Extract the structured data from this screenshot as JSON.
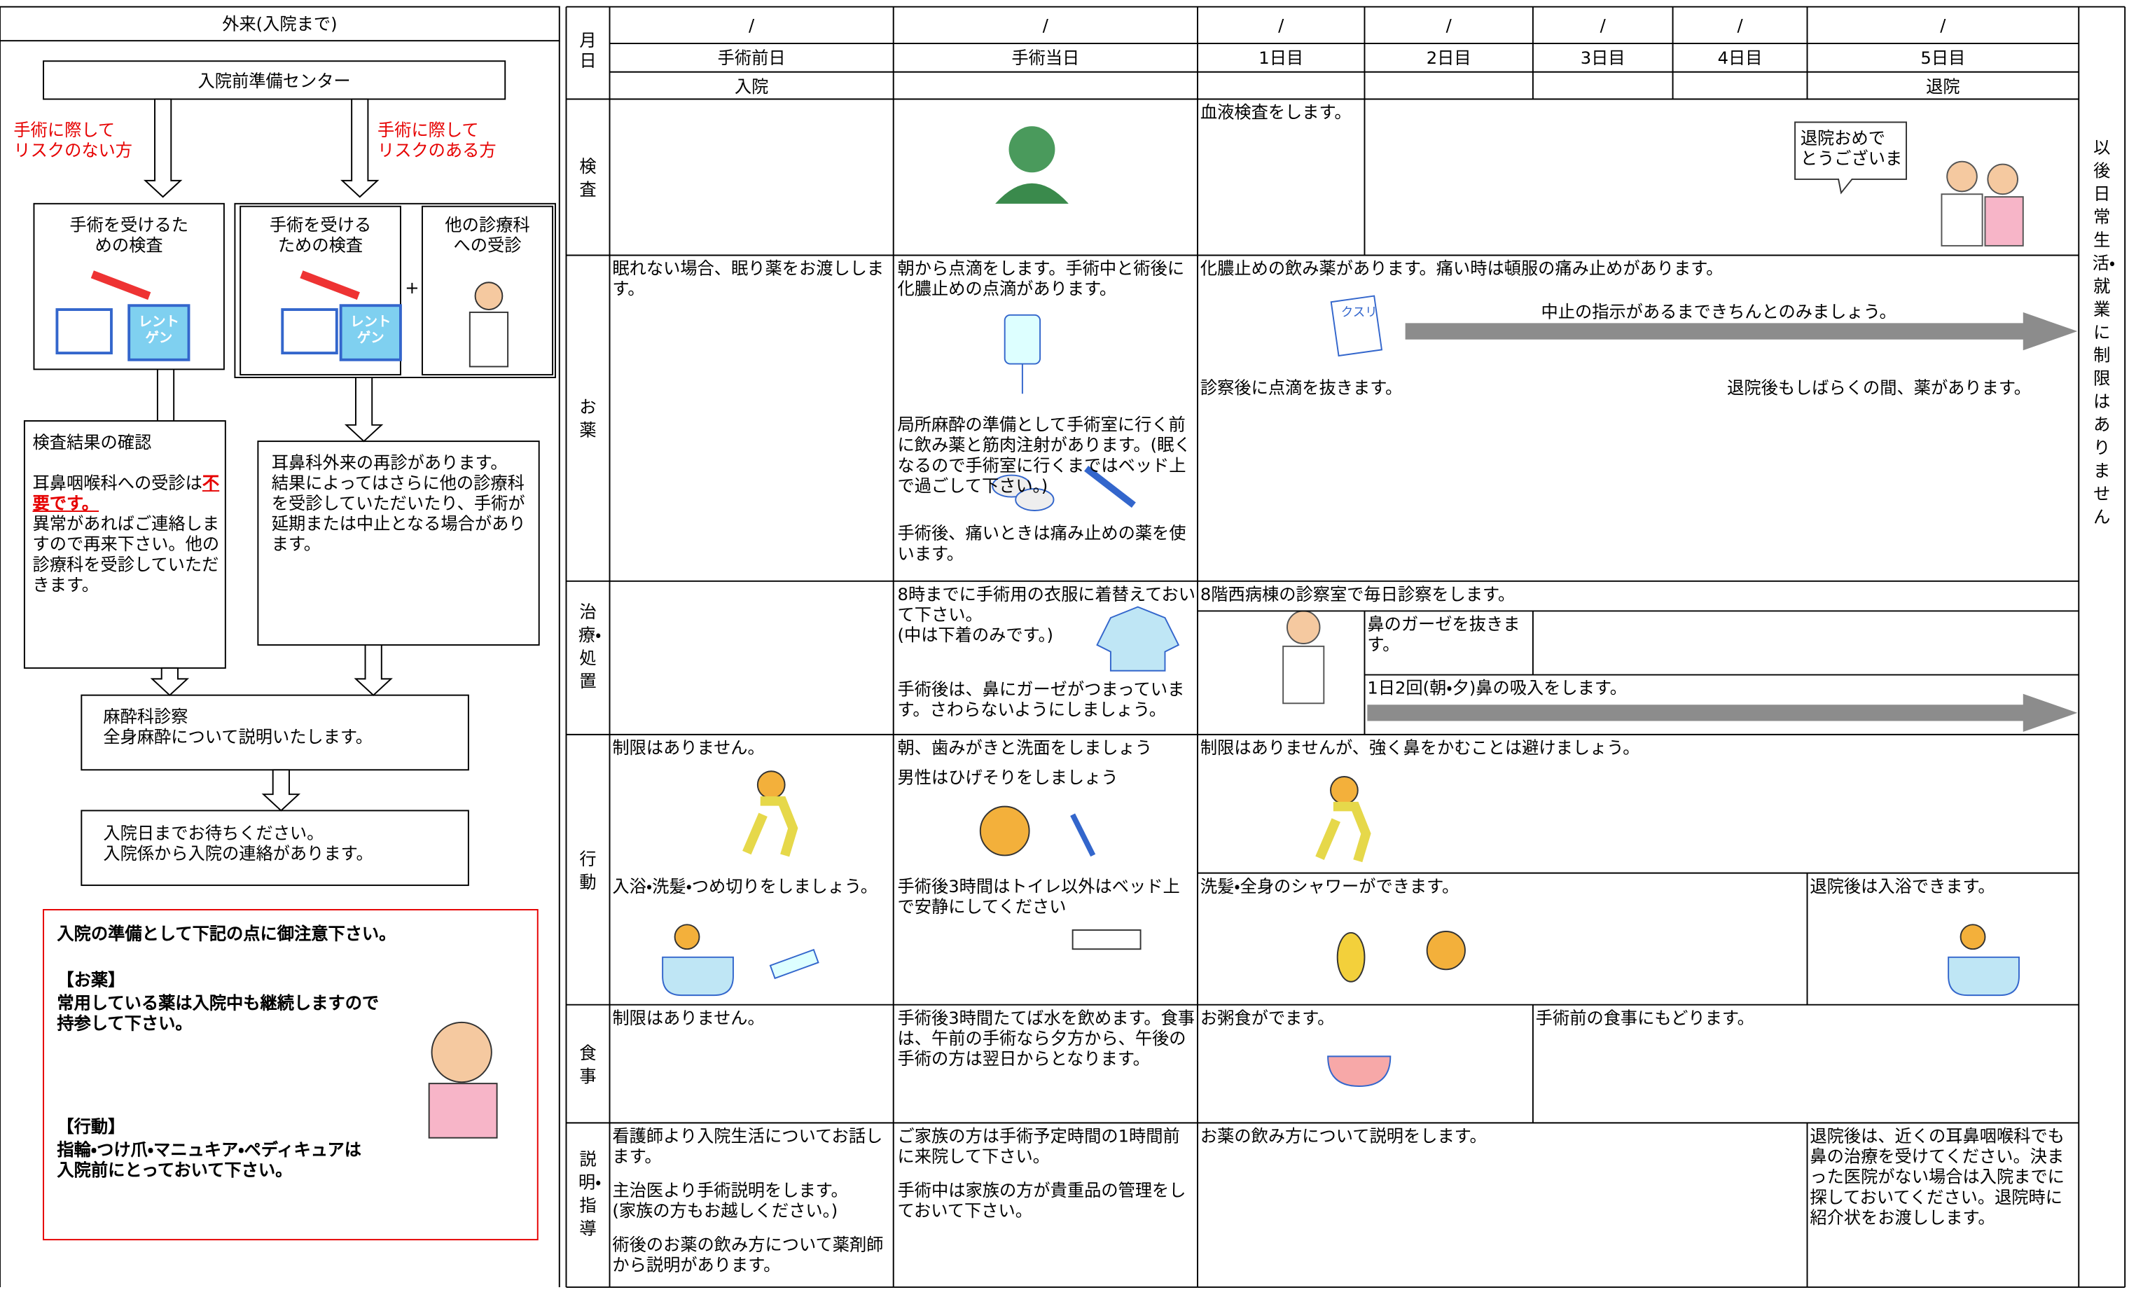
{
  "left_panel": {
    "title": "外来(入院まで)",
    "center": "入院前準備センター",
    "no_risk": "手術に際して\nリスクのない方",
    "risk": "手術に際して\nリスクのある方",
    "exam_no_risk": "手術を受けるた\nめの検査",
    "exam_risk": "手術を受ける\nための検査",
    "other_dept": "他の診療科\nへの受診",
    "plus": "+",
    "xray_label": "レント\nゲン",
    "result": {
      "heading": "検査結果の確認",
      "line1": "耳鼻咽喉科への受診は",
      "emphasis": "不要です。",
      "line2": "異常があればご連絡しますので再来下さい。他の診療科を受診していただきます。"
    },
    "revisit": "耳鼻科外来の再診があります。\n結果によってはさらに他の診療科を受診していただいたり、手術が延期または中止となる場合があります。",
    "anesthesia": "麻酔科診察\n全身麻酔について説明いたします。",
    "wait": "入院日までお待ちください。\n入院係から入院の連絡があります。",
    "notice": {
      "heading": "入院の準備として下記の点に御注意下さい。",
      "medicine_title": "【お薬】",
      "medicine": "常用している薬は入院中も継続しますので\n持参して下さい。",
      "activity_title": "【行動】",
      "activity": "指輪・つけ爪・マニュキア・ペディキュアは\n入院前にとっておいて下さい。"
    }
  },
  "schedule": {
    "date_header": "月\n日",
    "dates": [
      "/",
      "/",
      "/",
      "/",
      "/",
      "/",
      "/"
    ],
    "days": [
      "手術前日",
      "手術当日",
      "1日目",
      "2日目",
      "3日目",
      "4日目",
      "5日目"
    ],
    "admission": "入院",
    "discharge": "退院",
    "after_note": "以後日常生活・就業に制限はありません",
    "medicine_icon": "クスリ",
    "rows": [
      {
        "label": "検査",
        "cells": [
          "血液検査をします。",
          "退院おめで\nとうございま"
        ]
      },
      {
        "label": "お薬",
        "cells": [
          "眠れない場合、眠り薬をお渡しします。",
          "朝から点滴をします。手術中と術後に化膿止めの点滴があります。",
          "局所麻酔の準備として手術室に行く前に飲み薬と筋肉注射があります。(眠くなるので手術室に行くまではベッド上で過ごして下さい。)",
          "手術後、痛いときは痛み止めの薬を使います。",
          "化膿止めの飲み薬があります。痛い時は頓服の痛み止めがあります。",
          "中止の指示があるまできちんとのみましょう。",
          "診察後に点滴を抜きます。",
          "退院後もしばらくの間、薬があります。"
        ]
      },
      {
        "label": "治療・処置",
        "cells": [
          "8時までに手術用の衣服に着替えておいて下さい。\n(中は下着のみです。)",
          "手術後は、鼻にガーゼがつまっています。さわらないようにしましょう。",
          "8階西病棟の診察室で毎日診察をします。",
          "鼻のガーゼを抜きます。",
          "1日2回(朝・夕)鼻の吸入をします。"
        ]
      },
      {
        "label": "行動",
        "cells": [
          "制限はありません。",
          "入浴・洗髪・つめ切りをしましょう。",
          "朝、歯みがきと洗面をしましょう",
          "男性はひげそりをしましょう",
          "手術後3時間はトイレ以外はベッド上で安静にしてください",
          "制限はありませんが、強く鼻をかむことは避けましょう。",
          "洗髪・全身のシャワーができます。",
          "退院後は入浴できます。"
        ]
      },
      {
        "label": "食事",
        "cells": [
          "制限はありません。",
          "手術後3時間たてば水を飲めます。食事は、午前の手術なら夕方から、午後の手術の方は翌日からとなります。",
          "お粥食がでます。",
          "手術前の食事にもどります。"
        ]
      },
      {
        "label": "説明・指導",
        "cells": [
          "看護師より入院生活についてお話します。",
          "主治医より手術説明をします。\n(家族の方もお越しください。)",
          "術後のお薬の飲み方について薬剤師から説明があります。",
          "ご家族の方は手術予定時間の1時間前に来院して下さい。",
          "手術中は家族の方が貴重品の管理をしておいて下さい。",
          "お薬の飲み方について説明をします。",
          "退院後は、近くの耳鼻咽喉科でも鼻の治療を受けてください。決まった医院がない場合は入院までに探しておいてください。退院時に紹介状をお渡しします。"
        ]
      }
    ]
  }
}
